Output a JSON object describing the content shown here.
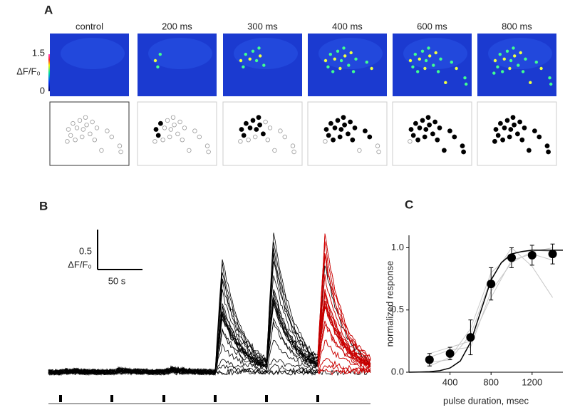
{
  "panel_labels": [
    "A",
    "B",
    "C"
  ],
  "panel_a": {
    "conditions": [
      "control",
      "200 ms",
      "300 ms",
      "400 ms",
      "600 ms",
      "800 ms"
    ],
    "colorbar": {
      "label": "ΔF/F₀",
      "max": "1.5",
      "min": "0"
    }
  },
  "panel_b": {
    "scale_bar": {
      "amplitude": "0.5",
      "amplitude_unit": "ΔF/F₀",
      "time": "50 s"
    }
  },
  "chart_data": {
    "type": "scatter",
    "xlabel": "pulse duration, msec",
    "ylabel": "normalized response",
    "x": [
      200,
      400,
      600,
      800,
      1000,
      1200,
      1400
    ],
    "values": [
      0.1,
      0.15,
      0.28,
      0.71,
      0.92,
      0.94,
      0.95
    ],
    "errors": [
      0.05,
      0.05,
      0.14,
      0.13,
      0.08,
      0.08,
      0.08
    ],
    "color": "#000000",
    "fit": {
      "x": [
        0,
        100,
        200,
        300,
        400,
        500,
        600,
        700,
        800,
        900,
        1000,
        1100,
        1200,
        1300,
        1400,
        1500
      ],
      "values": [
        0.0,
        0.001,
        0.004,
        0.012,
        0.034,
        0.09,
        0.24,
        0.49,
        0.74,
        0.88,
        0.95,
        0.97,
        0.98,
        0.98,
        0.98,
        0.98
      ],
      "color": "#000000"
    },
    "traces": {
      "color": "#c8c8c8",
      "series": [
        [
          0.05,
          0.12,
          0.35,
          0.8,
          0.95,
          0.98,
          0.97
        ],
        [
          0.15,
          0.2,
          0.25,
          0.6,
          0.9,
          0.95,
          0.9
        ],
        [
          0.08,
          0.1,
          0.3,
          0.75,
          1.0,
          0.85,
          0.6
        ],
        [
          0.12,
          0.18,
          0.2,
          0.65,
          0.88,
          0.97,
          1.0
        ]
      ]
    },
    "xlim": [
      0,
      1500
    ],
    "ylim": [
      0,
      1.1
    ],
    "xticks": [
      400,
      800,
      1200
    ],
    "yticks": [
      {
        "value": 0,
        "label": "0.0"
      },
      {
        "value": 0.5,
        "label": "0.5"
      },
      {
        "value": 1,
        "label": "1.0"
      }
    ]
  }
}
